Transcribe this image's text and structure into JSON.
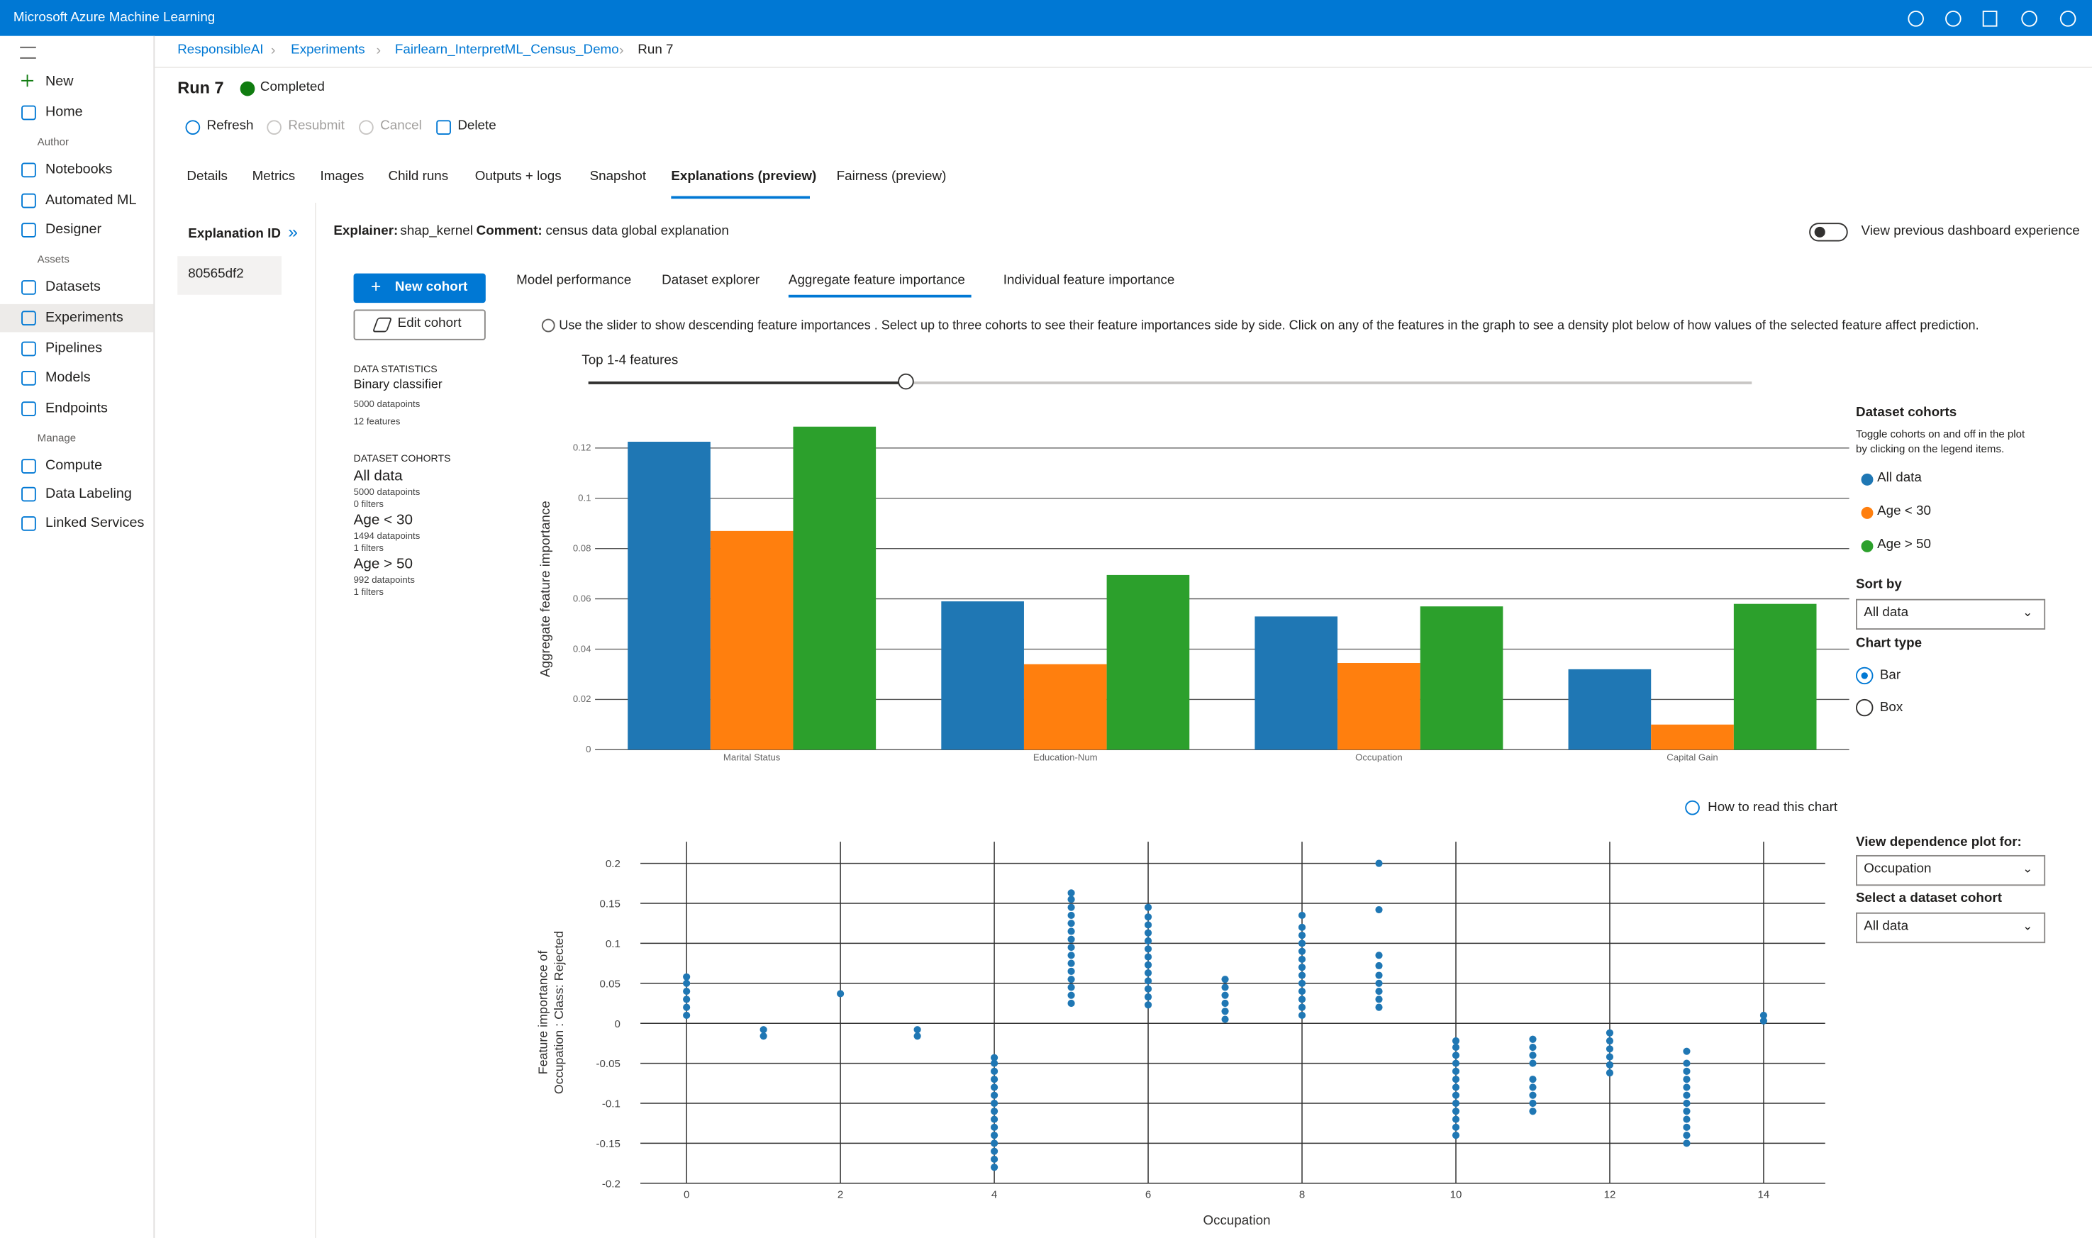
{
  "header": {
    "title": "Microsoft Azure Machine Learning"
  },
  "sidebar": {
    "items": [
      "New",
      "Home"
    ],
    "groups": [
      {
        "heading": "Author",
        "items": [
          "Notebooks",
          "Automated ML",
          "Designer"
        ]
      },
      {
        "heading": "Assets",
        "items": [
          "Datasets",
          "Experiments",
          "Pipelines",
          "Models",
          "Endpoints"
        ]
      },
      {
        "heading": "Manage",
        "items": [
          "Compute",
          "Data Labeling",
          "Linked Services"
        ]
      }
    ]
  },
  "breadcrumb": [
    "ResponsibleAI",
    "Experiments",
    "Fairlearn_InterpretML_Census_Demo",
    "Run 7"
  ],
  "run": {
    "title": "Run 7",
    "status": "Completed"
  },
  "toolbar": [
    "Refresh",
    "Resubmit",
    "Cancel",
    "Delete"
  ],
  "tabs": [
    "Details",
    "Metrics",
    "Images",
    "Child runs",
    "Outputs + logs",
    "Snapshot",
    "Explanations (preview)",
    "Fairness (preview)"
  ],
  "explanation": {
    "id_label": "Explanation ID",
    "id": "80565df2",
    "explainer_label": "Explainer:",
    "explainer": "shap_kernel",
    "comment_label": "Comment:",
    "comment": "census data global explanation",
    "toggle_label": "View previous dashboard experience"
  },
  "dashboard": {
    "tabs": [
      "Model performance",
      "Dataset explorer",
      "Aggregate feature importance",
      "Individual feature importance"
    ],
    "buttons": [
      "New cohort",
      "Edit cohort"
    ],
    "info": "Use the slider to show descending feature importances . Select up to three cohorts to see their feature importances side by side. Click on any of the features in the graph to see a density plot below of how values of the selected feature affect prediction.",
    "slider_label": "Top 1-4 features",
    "data_statistics": {
      "heading": "DATA STATISTICS",
      "model": "Binary classifier",
      "datapoints": "5000 datapoints",
      "features": "12 features"
    },
    "cohorts_heading": "DATASET COHORTS",
    "cohorts": [
      {
        "name": "All data",
        "datapoints": "5000 datapoints",
        "filters": "0 filters"
      },
      {
        "name": "Age < 30",
        "datapoints": "1494 datapoints",
        "filters": "1 filters"
      },
      {
        "name": "Age > 50",
        "datapoints": "992 datapoints",
        "filters": "1 filters"
      }
    ],
    "legend_title": "Dataset cohorts",
    "legend_help": [
      "Toggle cohorts on and off in the plot",
      "by clicking on the legend items."
    ],
    "sort_label": "Sort by",
    "sort_value": "All data",
    "chart_type_label": "Chart type",
    "chart_types": [
      "Bar",
      "Box"
    ],
    "how_to_read": "How to read this chart",
    "dependence_label": "View dependence plot for:",
    "dependence_value": "Occupation",
    "cohort_select_label": "Select a dataset cohort",
    "cohort_select_value": "All data"
  },
  "chart_data": [
    {
      "type": "bar",
      "ylabel": "Aggregate feature importance",
      "categories": [
        "Marital Status",
        "Education-Num",
        "Occupation",
        "Capital Gain"
      ],
      "series": [
        {
          "name": "All data",
          "color": "#1f77b4",
          "values": [
            0.1225,
            0.059,
            0.053,
            0.032
          ]
        },
        {
          "name": "Age < 30",
          "color": "#ff7f0e",
          "values": [
            0.087,
            0.034,
            0.0345,
            0.01
          ]
        },
        {
          "name": "Age > 50",
          "color": "#2ca02c",
          "values": [
            0.1285,
            0.0695,
            0.057,
            0.058
          ]
        }
      ],
      "ylim": [
        0,
        0.13
      ],
      "yticks": [
        0,
        0.02,
        0.04,
        0.06,
        0.08,
        0.1,
        0.12
      ],
      "grid": true
    },
    {
      "type": "scatter",
      "xlabel": "Occupation",
      "ylabel": [
        "Feature importance of",
        "Occupation : Class: Rejected"
      ],
      "color": "#1f77b4",
      "x": [
        0,
        0,
        0,
        0,
        0,
        0,
        1,
        1,
        2,
        3,
        3,
        4,
        4,
        4,
        4,
        4,
        4,
        4,
        4,
        4,
        4,
        4,
        4,
        4,
        4,
        4,
        5,
        5,
        5,
        5,
        5,
        5,
        5,
        5,
        5,
        5,
        5,
        5,
        5,
        5,
        5,
        6,
        6,
        6,
        6,
        6,
        6,
        6,
        6,
        6,
        6,
        6,
        6,
        6,
        7,
        7,
        7,
        7,
        7,
        7,
        8,
        8,
        8,
        8,
        8,
        8,
        8,
        8,
        8,
        8,
        8,
        8,
        8,
        9,
        9,
        9,
        9,
        9,
        9,
        9,
        9,
        9,
        10,
        10,
        10,
        10,
        10,
        10,
        10,
        10,
        10,
        10,
        10,
        10,
        10,
        11,
        11,
        11,
        11,
        11,
        11,
        11,
        11,
        11,
        12,
        12,
        12,
        12,
        12,
        12,
        13,
        13,
        13,
        13,
        13,
        13,
        13,
        13,
        13,
        13,
        13,
        13,
        14,
        14
      ],
      "y": [
        0.01,
        0.02,
        0.03,
        0.04,
        0.05,
        0.058,
        -0.016,
        -0.008,
        0.037,
        -0.016,
        -0.008,
        -0.18,
        -0.17,
        -0.16,
        -0.15,
        -0.14,
        -0.13,
        -0.12,
        -0.11,
        -0.1,
        -0.09,
        -0.08,
        -0.07,
        -0.06,
        -0.05,
        -0.043,
        0.025,
        0.035,
        0.045,
        0.055,
        0.065,
        0.075,
        0.085,
        0.095,
        0.105,
        0.115,
        0.125,
        0.135,
        0.145,
        0.155,
        0.163,
        0.023,
        0.033,
        0.043,
        0.053,
        0.063,
        0.073,
        0.083,
        0.093,
        0.103,
        0.113,
        0.123,
        0.133,
        0.145,
        0.005,
        0.015,
        0.025,
        0.035,
        0.045,
        0.055,
        0.01,
        0.02,
        0.03,
        0.04,
        0.05,
        0.06,
        0.07,
        0.08,
        0.09,
        0.1,
        0.11,
        0.12,
        0.135,
        0.02,
        0.03,
        0.04,
        0.05,
        0.06,
        0.072,
        0.085,
        0.142,
        0.2,
        -0.14,
        -0.13,
        -0.12,
        -0.11,
        -0.1,
        -0.09,
        -0.08,
        -0.07,
        -0.06,
        -0.05,
        -0.04,
        -0.03,
        -0.022,
        -0.11,
        -0.1,
        -0.09,
        -0.08,
        -0.07,
        -0.05,
        -0.04,
        -0.03,
        -0.02,
        -0.062,
        -0.052,
        -0.042,
        -0.032,
        -0.022,
        -0.012,
        -0.15,
        -0.14,
        -0.13,
        -0.12,
        -0.11,
        -0.1,
        -0.09,
        -0.08,
        -0.07,
        -0.06,
        -0.05,
        -0.035,
        0.003,
        0.01
      ],
      "xlim": [
        -0.6,
        14.8
      ],
      "ylim": [
        -0.2,
        0.227
      ],
      "xticks": [
        0,
        2,
        4,
        6,
        8,
        10,
        12,
        14
      ],
      "yticks": [
        -0.2,
        -0.15,
        -0.1,
        -0.05,
        0,
        0.05,
        0.1,
        0.15,
        0.2
      ],
      "grid": true
    }
  ]
}
